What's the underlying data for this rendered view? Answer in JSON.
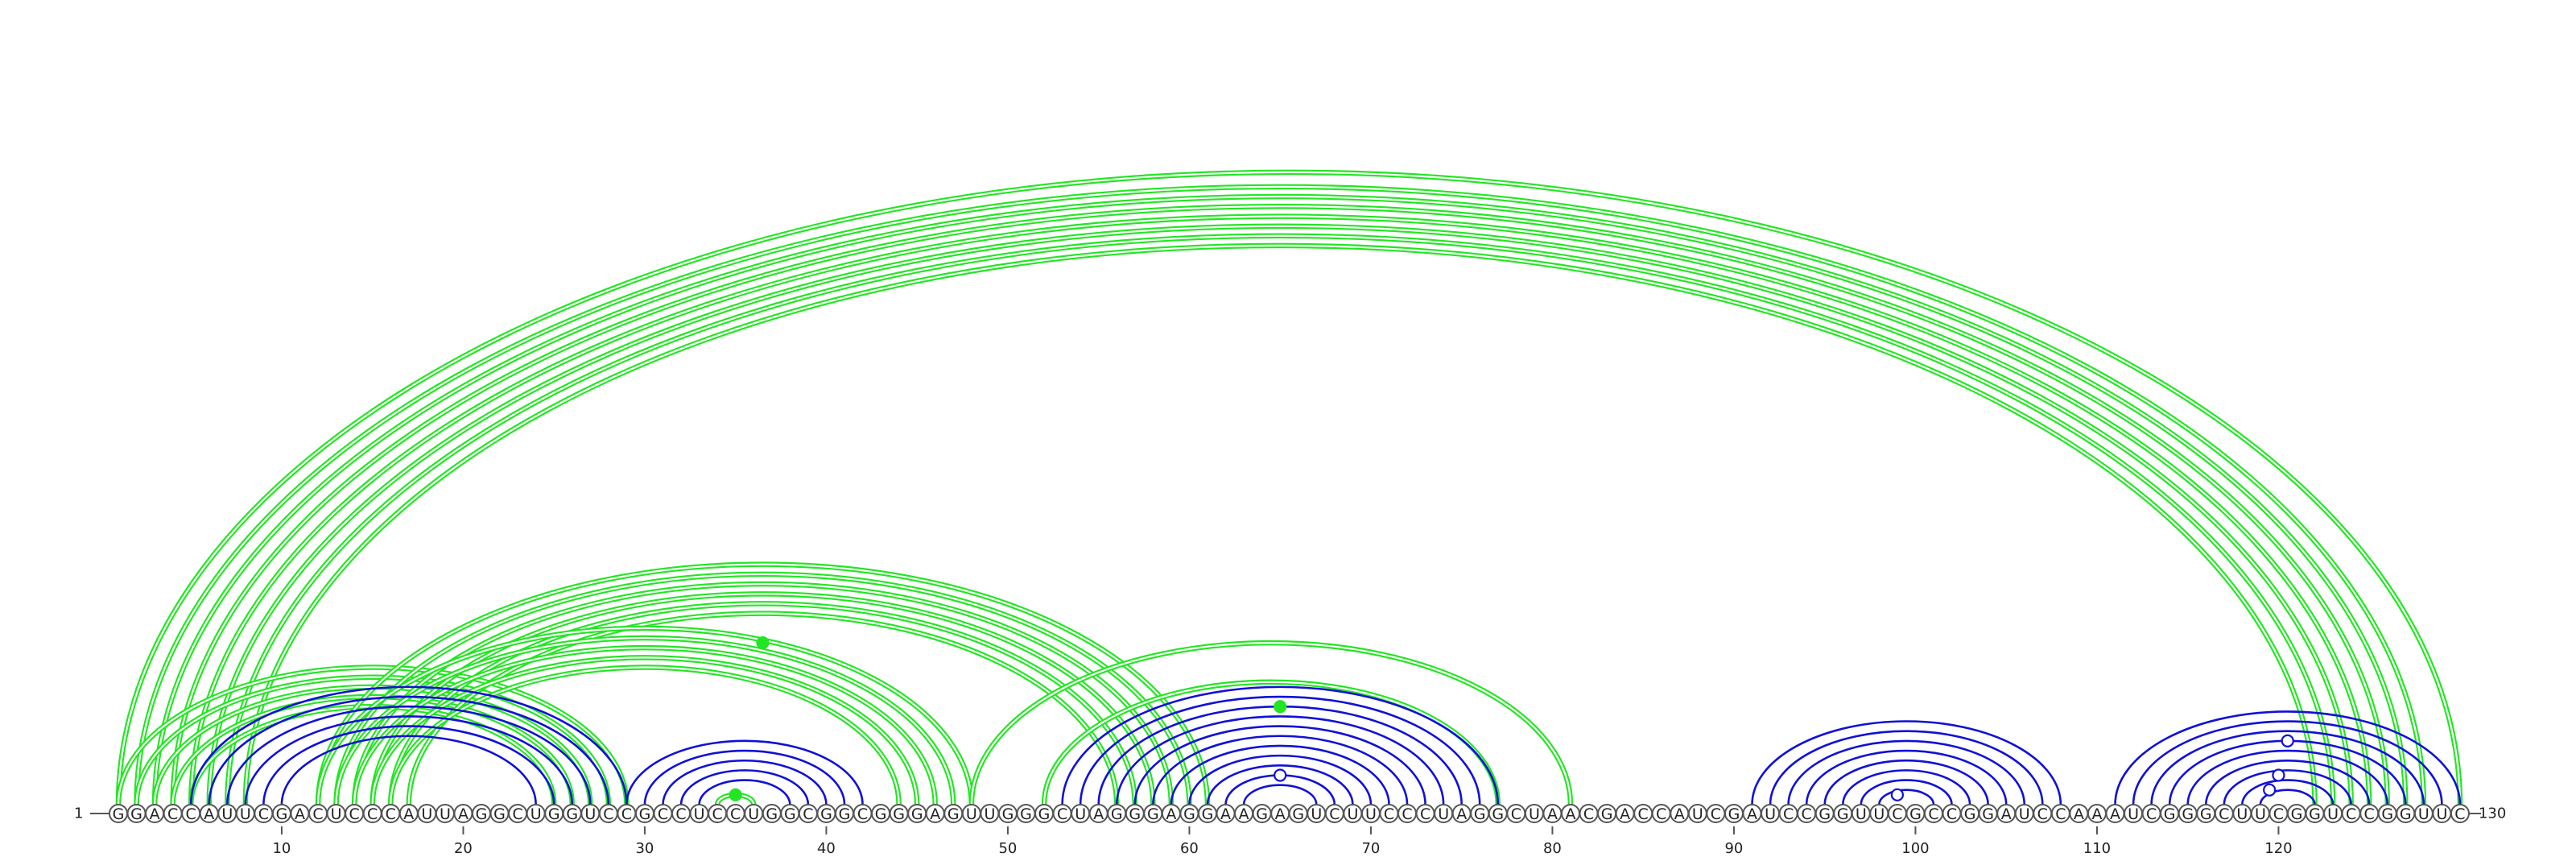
{
  "sequence": "GGACCAUUCGACUCCCAUUAGGCUGGUCCGCCUCCUGGCGGCGGGAGUUGGGCUAGGGAGGAAGAGUCUUCCCUAGGCUAACGACCAUCGAUCCGGUUCGCCGGAUCCAAAUCGGGCUUCGGUCCGGUUC",
  "start_label": "1",
  "end_label": "130",
  "tick_positions": [
    10,
    20,
    30,
    40,
    50,
    60,
    70,
    80,
    90,
    100,
    110,
    120
  ],
  "tick_labels": [
    "10",
    "20",
    "30",
    "40",
    "50",
    "60",
    "70",
    "80",
    "90",
    "100",
    "110",
    "120"
  ],
  "colors": {
    "primary_structure": "#1010d8",
    "alternative_structure": "#22e622",
    "background": "#ffffff"
  },
  "arc_groups": [
    {
      "color": "alternative_structure",
      "kind": "double",
      "pairs": [
        [
          1,
          130
        ],
        [
          2,
          128
        ],
        [
          3,
          127
        ],
        [
          4,
          126
        ],
        [
          5,
          125
        ],
        [
          6,
          124
        ],
        [
          7,
          123
        ],
        [
          8,
          122
        ]
      ]
    },
    {
      "color": "alternative_structure",
      "kind": "double",
      "pairs": [
        [
          1,
          29
        ],
        [
          2,
          28
        ],
        [
          3,
          27
        ],
        [
          4,
          26
        ],
        [
          5,
          25
        ]
      ]
    },
    {
      "color": "alternative_structure",
      "kind": "double",
      "pairs": [
        [
          12,
          61
        ],
        [
          13,
          60
        ],
        [
          14,
          59
        ],
        [
          15,
          58
        ],
        [
          16,
          57
        ],
        [
          17,
          56
        ]
      ]
    },
    {
      "color": "alternative_structure",
      "kind": "double",
      "pairs": [
        [
          12,
          48
        ],
        [
          13,
          47
        ],
        [
          14,
          46
        ],
        [
          15,
          45
        ],
        [
          16,
          44
        ]
      ]
    },
    {
      "color": "alternative_structure",
      "kind": "double",
      "pairs": [
        [
          48,
          81
        ]
      ]
    },
    {
      "color": "alternative_structure",
      "kind": "double",
      "pairs": [
        [
          52,
          77
        ]
      ]
    },
    {
      "color": "alternative_structure",
      "kind": "double",
      "pairs": [
        [
          34,
          36
        ]
      ]
    },
    {
      "color": "primary_structure",
      "kind": "single",
      "pairs": [
        [
          5,
          29
        ],
        [
          6,
          28
        ],
        [
          7,
          27
        ],
        [
          8,
          26
        ],
        [
          9,
          25
        ],
        [
          10,
          24
        ]
      ]
    },
    {
      "color": "primary_structure",
      "kind": "single",
      "pairs": [
        [
          29,
          42
        ],
        [
          30,
          41
        ],
        [
          31,
          40
        ],
        [
          32,
          39
        ],
        [
          33,
          38
        ]
      ]
    },
    {
      "color": "primary_structure",
      "kind": "single",
      "pairs": [
        [
          53,
          77
        ],
        [
          54,
          76
        ],
        [
          55,
          75
        ],
        [
          56,
          74
        ],
        [
          57,
          73
        ],
        [
          58,
          72
        ],
        [
          59,
          71
        ],
        [
          60,
          70
        ],
        [
          61,
          69
        ],
        [
          62,
          68
        ],
        [
          63,
          67
        ]
      ]
    },
    {
      "color": "primary_structure",
      "kind": "single",
      "pairs": [
        [
          91,
          108
        ],
        [
          92,
          107
        ],
        [
          93,
          106
        ],
        [
          94,
          105
        ],
        [
          95,
          104
        ],
        [
          96,
          103
        ],
        [
          97,
          102
        ],
        [
          98,
          101
        ]
      ]
    },
    {
      "color": "primary_structure",
      "kind": "single",
      "pairs": [
        [
          111,
          130
        ],
        [
          112,
          129
        ],
        [
          113,
          128
        ],
        [
          114,
          127
        ],
        [
          115,
          126
        ],
        [
          116,
          125
        ],
        [
          117,
          124
        ],
        [
          118,
          123
        ],
        [
          119,
          122
        ]
      ]
    }
  ],
  "markers": [
    {
      "i": 20,
      "j": 53,
      "filled": true,
      "color": "alternative_structure"
    },
    {
      "i": 34,
      "j": 36,
      "filled": true,
      "color": "alternative_structure"
    },
    {
      "i": 55,
      "j": 75,
      "filled": true,
      "color": "alternative_structure"
    },
    {
      "i": 62,
      "j": 68,
      "filled": false,
      "color": "primary_structure"
    },
    {
      "i": 98,
      "j": 100,
      "filled": false,
      "color": "primary_structure"
    },
    {
      "i": 114,
      "j": 127,
      "filled": false,
      "color": "primary_structure"
    },
    {
      "i": 117,
      "j": 123,
      "filled": false,
      "color": "primary_structure"
    },
    {
      "i": 118,
      "j": 121,
      "filled": false,
      "color": "primary_structure"
    }
  ]
}
